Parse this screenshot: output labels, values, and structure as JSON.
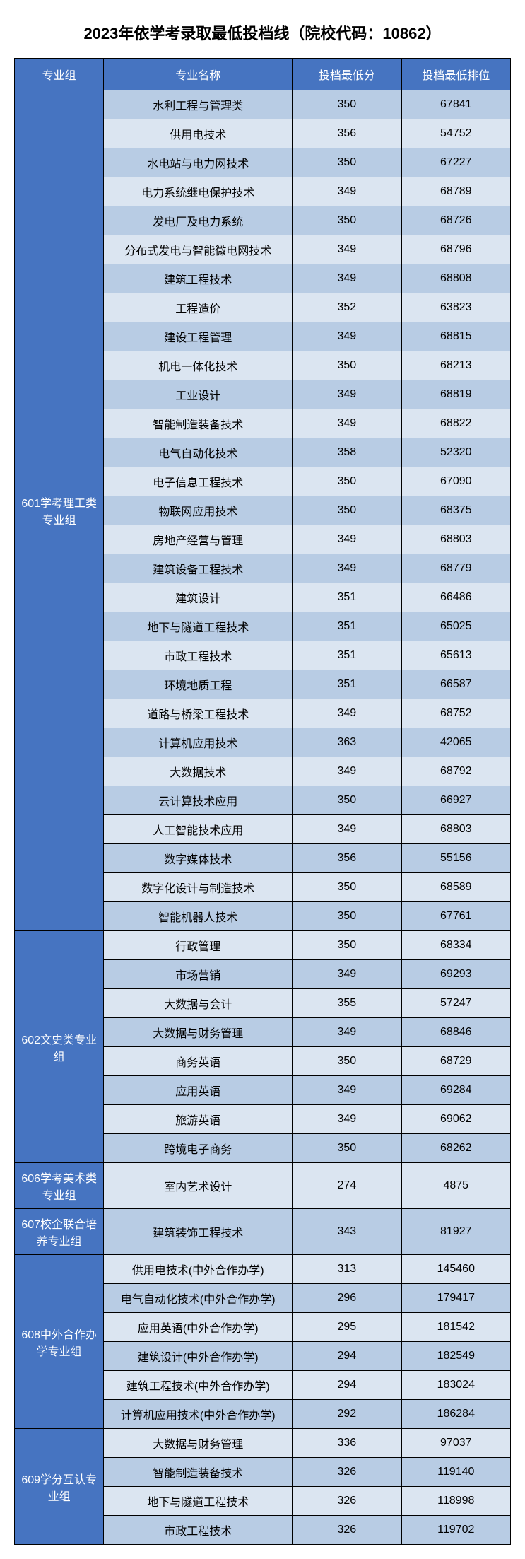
{
  "title": "2023年依学考录取最低投档线（院校代码：10862）",
  "columns": [
    "专业组",
    "专业名称",
    "投档最低分",
    "投档最低排位"
  ],
  "colors": {
    "header_bg": "#4674c1",
    "header_fg": "#ffffff",
    "row_odd": "#b8cce4",
    "row_even": "#dbe5f1",
    "border": "#000000"
  },
  "font_sizes": {
    "title": 22,
    "cell": 16
  },
  "column_widths_pct": [
    18,
    38,
    22,
    22
  ],
  "groups": [
    {
      "name": "601学考理工类专业组",
      "rows": [
        {
          "major": "水利工程与管理类",
          "score": "350",
          "rank": "67841"
        },
        {
          "major": "供用电技术",
          "score": "356",
          "rank": "54752"
        },
        {
          "major": "水电站与电力网技术",
          "score": "350",
          "rank": "67227"
        },
        {
          "major": "电力系统继电保护技术",
          "score": "349",
          "rank": "68789"
        },
        {
          "major": "发电厂及电力系统",
          "score": "350",
          "rank": "68726"
        },
        {
          "major": "分布式发电与智能微电网技术",
          "score": "349",
          "rank": "68796"
        },
        {
          "major": "建筑工程技术",
          "score": "349",
          "rank": "68808"
        },
        {
          "major": "工程造价",
          "score": "352",
          "rank": "63823"
        },
        {
          "major": "建设工程管理",
          "score": "349",
          "rank": "68815"
        },
        {
          "major": "机电一体化技术",
          "score": "350",
          "rank": "68213"
        },
        {
          "major": "工业设计",
          "score": "349",
          "rank": "68819"
        },
        {
          "major": "智能制造装备技术",
          "score": "349",
          "rank": "68822"
        },
        {
          "major": "电气自动化技术",
          "score": "358",
          "rank": "52320"
        },
        {
          "major": "电子信息工程技术",
          "score": "350",
          "rank": "67090"
        },
        {
          "major": "物联网应用技术",
          "score": "350",
          "rank": "68375"
        },
        {
          "major": "房地产经营与管理",
          "score": "349",
          "rank": "68803"
        },
        {
          "major": "建筑设备工程技术",
          "score": "349",
          "rank": "68779"
        },
        {
          "major": "建筑设计",
          "score": "351",
          "rank": "66486"
        },
        {
          "major": "地下与隧道工程技术",
          "score": "351",
          "rank": "65025"
        },
        {
          "major": "市政工程技术",
          "score": "351",
          "rank": "65613"
        },
        {
          "major": "环境地质工程",
          "score": "351",
          "rank": "66587"
        },
        {
          "major": "道路与桥梁工程技术",
          "score": "349",
          "rank": "68752"
        },
        {
          "major": "计算机应用技术",
          "score": "363",
          "rank": "42065"
        },
        {
          "major": "大数据技术",
          "score": "349",
          "rank": "68792"
        },
        {
          "major": "云计算技术应用",
          "score": "350",
          "rank": "66927"
        },
        {
          "major": "人工智能技术应用",
          "score": "349",
          "rank": "68803"
        },
        {
          "major": "数字媒体技术",
          "score": "356",
          "rank": "55156"
        },
        {
          "major": "数字化设计与制造技术",
          "score": "350",
          "rank": "68589"
        },
        {
          "major": "智能机器人技术",
          "score": "350",
          "rank": "67761"
        }
      ]
    },
    {
      "name": "602文史类专业组",
      "rows": [
        {
          "major": "行政管理",
          "score": "350",
          "rank": "68334"
        },
        {
          "major": "市场营销",
          "score": "349",
          "rank": "69293"
        },
        {
          "major": "大数据与会计",
          "score": "355",
          "rank": "57247"
        },
        {
          "major": "大数据与财务管理",
          "score": "349",
          "rank": "68846"
        },
        {
          "major": "商务英语",
          "score": "350",
          "rank": "68729"
        },
        {
          "major": "应用英语",
          "score": "349",
          "rank": "69284"
        },
        {
          "major": "旅游英语",
          "score": "349",
          "rank": "69062"
        },
        {
          "major": "跨境电子商务",
          "score": "350",
          "rank": "68262"
        }
      ]
    },
    {
      "name": "606学考美术类专业组",
      "rows": [
        {
          "major": "室内艺术设计",
          "score": "274",
          "rank": "4875"
        }
      ]
    },
    {
      "name": "607校企联合培养专业组",
      "rows": [
        {
          "major": "建筑装饰工程技术",
          "score": "343",
          "rank": "81927"
        }
      ]
    },
    {
      "name": "608中外合作办学专业组",
      "rows": [
        {
          "major": "供用电技术(中外合作办学)",
          "score": "313",
          "rank": "145460"
        },
        {
          "major": "电气自动化技术(中外合作办学)",
          "score": "296",
          "rank": "179417"
        },
        {
          "major": "应用英语(中外合作办学)",
          "score": "295",
          "rank": "181542"
        },
        {
          "major": "建筑设计(中外合作办学)",
          "score": "294",
          "rank": "182549"
        },
        {
          "major": "建筑工程技术(中外合作办学)",
          "score": "294",
          "rank": "183024"
        },
        {
          "major": "计算机应用技术(中外合作办学)",
          "score": "292",
          "rank": "186284"
        }
      ]
    },
    {
      "name": "609学分互认专业组",
      "rows": [
        {
          "major": "大数据与财务管理",
          "score": "336",
          "rank": "97037"
        },
        {
          "major": "智能制造装备技术",
          "score": "326",
          "rank": "119140"
        },
        {
          "major": "地下与隧道工程技术",
          "score": "326",
          "rank": "118998"
        },
        {
          "major": "市政工程技术",
          "score": "326",
          "rank": "119702"
        }
      ]
    }
  ]
}
